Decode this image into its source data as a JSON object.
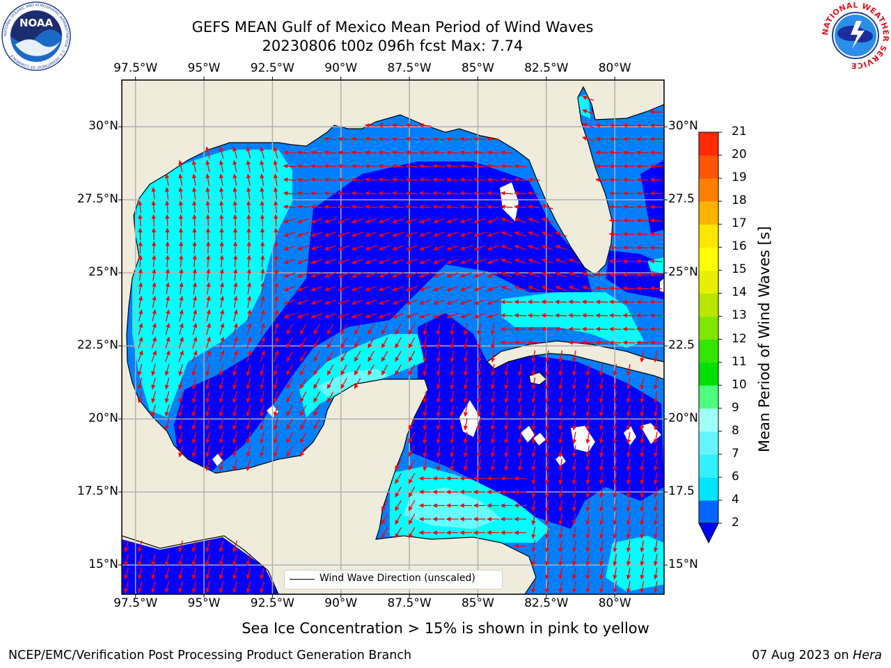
{
  "title": {
    "line1": "GEFS MEAN Gulf of Mexico Mean Period of Wind Waves",
    "line2": "20230806 t00z 096h fcst   Max: 7.74"
  },
  "logos": {
    "noaa": {
      "text": "NOAA",
      "ring_text": "NATIONAL OCEANIC AND ATMOSPHERIC ADMINISTRATION · U.S. DEPARTMENT OF COMMERCE"
    },
    "nws": {
      "ring_text": "NATIONAL WEATHER SERVICE"
    }
  },
  "map": {
    "lon_labels": [
      "97.5°W",
      "95°W",
      "92.5°W",
      "90°W",
      "87.5°W",
      "85°W",
      "82.5°W",
      "80°W"
    ],
    "lat_labels_left": [
      "30°N",
      "27.5°N",
      "25°N",
      "22.5°N",
      "20°N",
      "17.5°N",
      "15°N"
    ],
    "lat_labels_right": [
      "30°N",
      "27.5",
      "25°N",
      "22.5",
      "20°N",
      "17.5",
      "15°N"
    ],
    "extent": {
      "lon_min": -98.0,
      "lon_max": -78.2,
      "lat_min": 14.0,
      "lat_max": 31.6
    },
    "land_color": "#efecdc",
    "arrow_color": "#ff0000",
    "legend_label": "Wind Wave Direction (unscaled)"
  },
  "colorbar": {
    "label": "Mean Period of Wind Waves [s]",
    "ticks": [
      "2",
      "4",
      "6",
      "7",
      "8",
      "9",
      "10",
      "11",
      "12",
      "13",
      "14",
      "15",
      "16",
      "17",
      "18",
      "19",
      "20",
      "21"
    ],
    "colors": [
      "#0066ff",
      "#00e5ff",
      "#33f0ff",
      "#66f5ff",
      "#a0fff7",
      "#4dff80",
      "#00e000",
      "#33e600",
      "#80e600",
      "#b8e600",
      "#e6f000",
      "#ffff00",
      "#ffe600",
      "#ffb300",
      "#ff8000",
      "#ff5500",
      "#ff2a00",
      "#ff0000"
    ],
    "extend_color": "#0000ff"
  },
  "field_colors": {
    "lt2": "#0000ff",
    "2to4": "#0080ff",
    "4to6": "#00ffff",
    "6to7": "#66ffff"
  },
  "ice_note": "Sea Ice Concentration > 15% is shown in pink to yellow",
  "footer": {
    "left": "NCEP/EMC/Verification Post Processing Product Generation Branch",
    "right_date": "07 Aug 2023 on ",
    "right_host": "Hera"
  }
}
